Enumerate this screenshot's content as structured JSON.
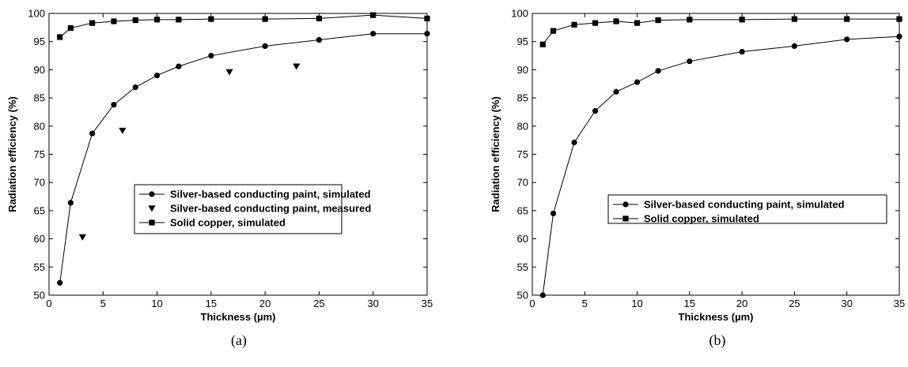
{
  "chart_data": [
    {
      "type": "line",
      "caption": "(a)",
      "xlabel": "Thickness (µm)",
      "ylabel": "Radiation efficiency (%)",
      "xlim": [
        0,
        35
      ],
      "ylim": [
        50,
        100
      ],
      "xticks": [
        0,
        5,
        10,
        15,
        20,
        25,
        30,
        35
      ],
      "yticks": [
        50,
        55,
        60,
        65,
        70,
        75,
        80,
        85,
        90,
        95,
        100
      ],
      "grid": false,
      "legend_position": "center-right",
      "series": [
        {
          "name": "Silver-based conducting paint, simulated",
          "marker": "circle",
          "line": true,
          "x": [
            1,
            2,
            4,
            6,
            8,
            10,
            12,
            15,
            20,
            25,
            30,
            35
          ],
          "y": [
            52.2,
            66.4,
            78.7,
            83.8,
            86.9,
            89.0,
            90.6,
            92.5,
            94.2,
            95.3,
            96.4,
            96.4
          ]
        },
        {
          "name": "Silver-based conducting paint, measured",
          "marker": "triangle-down",
          "line": false,
          "x": [
            3.1,
            6.8,
            16.7,
            22.9
          ],
          "y": [
            60.3,
            79.2,
            89.6,
            90.6
          ]
        },
        {
          "name": "Solid copper, simulated",
          "marker": "square",
          "line": true,
          "x": [
            1,
            2,
            4,
            6,
            8,
            10,
            12,
            15,
            20,
            25,
            30,
            35
          ],
          "y": [
            95.8,
            97.4,
            98.3,
            98.6,
            98.8,
            98.9,
            98.9,
            99.0,
            99.0,
            99.1,
            99.7,
            99.1
          ]
        }
      ]
    },
    {
      "type": "line",
      "caption": "(b)",
      "xlabel": "Thickness (µm)",
      "ylabel": "Radiation efficiency (%)",
      "xlim": [
        0,
        35
      ],
      "ylim": [
        50,
        100
      ],
      "xticks": [
        0,
        5,
        10,
        15,
        20,
        25,
        30,
        35
      ],
      "yticks": [
        50,
        55,
        60,
        65,
        70,
        75,
        80,
        85,
        90,
        95,
        100
      ],
      "grid": false,
      "legend_position": "center-right",
      "series": [
        {
          "name": "Silver-based conducting paint, simulated",
          "marker": "circle",
          "line": true,
          "x": [
            1,
            2,
            4,
            6,
            8,
            10,
            12,
            15,
            20,
            25,
            30,
            35
          ],
          "y": [
            50.0,
            64.5,
            77.1,
            82.7,
            86.1,
            87.8,
            89.8,
            91.5,
            93.2,
            94.2,
            95.4,
            95.9
          ]
        },
        {
          "name": "Solid copper, simulated",
          "marker": "square",
          "line": true,
          "x": [
            1,
            2,
            4,
            6,
            8,
            10,
            12,
            15,
            20,
            25,
            30,
            35
          ],
          "y": [
            94.5,
            96.9,
            98.0,
            98.3,
            98.6,
            98.3,
            98.8,
            98.9,
            98.9,
            99.0,
            99.0,
            99.0
          ]
        }
      ]
    }
  ]
}
